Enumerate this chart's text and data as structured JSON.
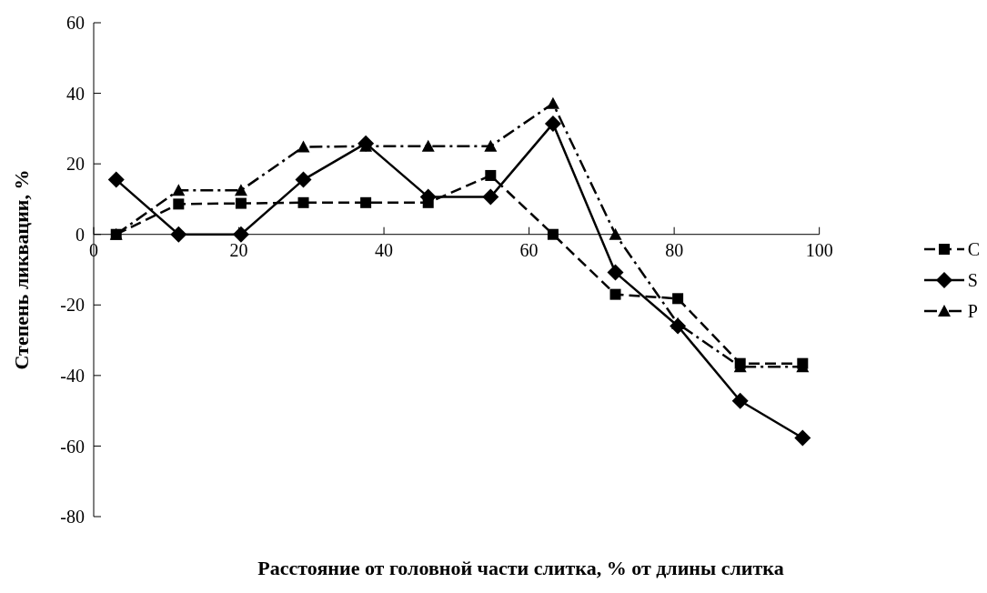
{
  "chart_data": {
    "type": "line",
    "xlabel": "Расстояние от головной части слитка, % от длины слитка",
    "ylabel": "Степень ликвации, %",
    "xlim": [
      0,
      100
    ],
    "xticks": [
      0,
      20,
      40,
      60,
      80,
      100
    ],
    "ylim": [
      -80,
      60
    ],
    "yticks": [
      -80,
      -60,
      -40,
      -20,
      0,
      20,
      40,
      60
    ],
    "grid": false,
    "legend": "right",
    "x": [
      3.1,
      11.7,
      20.3,
      28.9,
      37.5,
      46.1,
      54.7,
      63.3,
      71.9,
      80.5,
      89.1,
      97.7
    ],
    "series": [
      {
        "name": "C",
        "color": "#000000",
        "marker": "square",
        "line_style": "dashed",
        "values": [
          0,
          8.6,
          8.8,
          9,
          9,
          9,
          16.7,
          0,
          -17,
          -18.2,
          -36.6,
          -36.6
        ]
      },
      {
        "name": "S",
        "color": "#000000",
        "marker": "diamond",
        "line_style": "solid",
        "values": [
          15.5,
          0,
          0,
          15.5,
          25.8,
          10.6,
          10.6,
          31.4,
          -10.8,
          -26,
          -47.2,
          -57.7
        ]
      },
      {
        "name": "P",
        "color": "#000000",
        "marker": "triangle",
        "line_style": "dashdot",
        "values": [
          0,
          12.5,
          12.5,
          24.8,
          25,
          25,
          25,
          37.1,
          0,
          -25.3,
          -37.5,
          -37.5
        ]
      }
    ]
  }
}
